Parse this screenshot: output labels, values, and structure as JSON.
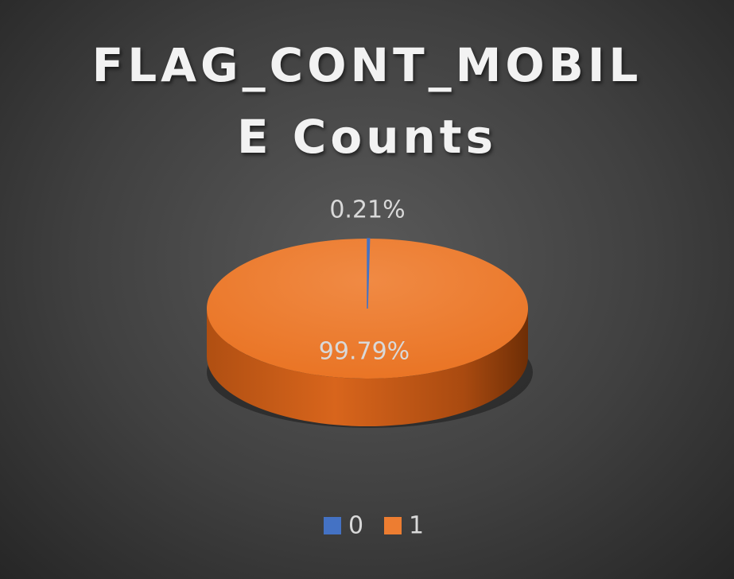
{
  "chart_data": {
    "type": "pie",
    "title_lines": [
      "FLAG_CONT_MOBIL",
      "E Counts"
    ],
    "categories": [
      "0",
      "1"
    ],
    "values": [
      0.21,
      99.79
    ],
    "data_labels": [
      "0.21%",
      "99.79%"
    ],
    "colors": [
      "#4472c4",
      "#ed7d31"
    ],
    "legend_position": "bottom",
    "style": "3d"
  }
}
